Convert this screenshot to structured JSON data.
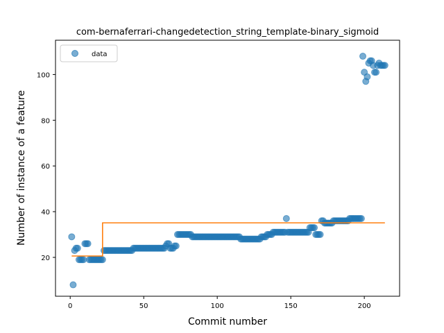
{
  "chart_data": {
    "type": "scatter",
    "title": "com-bernaferrari-changedetection_string_template-binary_sigmoid",
    "xlabel": "Commit number",
    "ylabel": "Number of instance of a feature",
    "xlim": [
      -10,
      224
    ],
    "ylim": [
      3,
      115
    ],
    "xticks": [
      0,
      50,
      100,
      150,
      200
    ],
    "yticks": [
      20,
      40,
      60,
      80,
      100
    ],
    "grid": false,
    "legend_position": "upper-left",
    "series": [
      {
        "name": "data",
        "kind": "points",
        "color": "#1f77b4",
        "points": [
          [
            1,
            29
          ],
          [
            2,
            8
          ],
          [
            3,
            23
          ],
          [
            4,
            24
          ],
          [
            5,
            24
          ],
          [
            6,
            19
          ],
          [
            7,
            19
          ],
          [
            8,
            19
          ],
          [
            9,
            19
          ],
          [
            10,
            26
          ],
          [
            11,
            26
          ],
          [
            12,
            26
          ],
          [
            13,
            19
          ],
          [
            14,
            19
          ],
          [
            15,
            19
          ],
          [
            16,
            19
          ],
          [
            17,
            19
          ],
          [
            18,
            19
          ],
          [
            19,
            19
          ],
          [
            20,
            19
          ],
          [
            21,
            19
          ],
          [
            22,
            19
          ],
          [
            23,
            23
          ],
          [
            24,
            23
          ],
          [
            25,
            23
          ],
          [
            26,
            23
          ],
          [
            27,
            23
          ],
          [
            28,
            23
          ],
          [
            29,
            23
          ],
          [
            30,
            23
          ],
          [
            31,
            23
          ],
          [
            32,
            23
          ],
          [
            33,
            23
          ],
          [
            34,
            23
          ],
          [
            35,
            23
          ],
          [
            36,
            23
          ],
          [
            37,
            23
          ],
          [
            38,
            23
          ],
          [
            39,
            23
          ],
          [
            40,
            23
          ],
          [
            41,
            23
          ],
          [
            42,
            23
          ],
          [
            43,
            24
          ],
          [
            44,
            24
          ],
          [
            45,
            24
          ],
          [
            46,
            24
          ],
          [
            47,
            24
          ],
          [
            48,
            24
          ],
          [
            49,
            24
          ],
          [
            50,
            24
          ],
          [
            51,
            24
          ],
          [
            52,
            24
          ],
          [
            53,
            24
          ],
          [
            54,
            24
          ],
          [
            55,
            24
          ],
          [
            56,
            24
          ],
          [
            57,
            24
          ],
          [
            58,
            24
          ],
          [
            59,
            24
          ],
          [
            60,
            24
          ],
          [
            61,
            24
          ],
          [
            62,
            24
          ],
          [
            63,
            24
          ],
          [
            64,
            24
          ],
          [
            65,
            25
          ],
          [
            66,
            26
          ],
          [
            67,
            26
          ],
          [
            68,
            24
          ],
          [
            69,
            24
          ],
          [
            70,
            24
          ],
          [
            71,
            25
          ],
          [
            72,
            25
          ],
          [
            73,
            30
          ],
          [
            74,
            30
          ],
          [
            75,
            30
          ],
          [
            76,
            30
          ],
          [
            77,
            30
          ],
          [
            78,
            30
          ],
          [
            79,
            30
          ],
          [
            80,
            30
          ],
          [
            81,
            30
          ],
          [
            82,
            30
          ],
          [
            83,
            29
          ],
          [
            84,
            29
          ],
          [
            85,
            29
          ],
          [
            86,
            29
          ],
          [
            87,
            29
          ],
          [
            88,
            29
          ],
          [
            89,
            29
          ],
          [
            90,
            29
          ],
          [
            91,
            29
          ],
          [
            92,
            29
          ],
          [
            93,
            29
          ],
          [
            94,
            29
          ],
          [
            95,
            29
          ],
          [
            96,
            29
          ],
          [
            97,
            29
          ],
          [
            98,
            29
          ],
          [
            99,
            29
          ],
          [
            100,
            29
          ],
          [
            101,
            29
          ],
          [
            102,
            29
          ],
          [
            103,
            29
          ],
          [
            104,
            29
          ],
          [
            105,
            29
          ],
          [
            106,
            29
          ],
          [
            107,
            29
          ],
          [
            108,
            29
          ],
          [
            109,
            29
          ],
          [
            110,
            29
          ],
          [
            111,
            29
          ],
          [
            112,
            29
          ],
          [
            113,
            29
          ],
          [
            114,
            29
          ],
          [
            115,
            29
          ],
          [
            116,
            28
          ],
          [
            117,
            28
          ],
          [
            118,
            28
          ],
          [
            119,
            28
          ],
          [
            120,
            28
          ],
          [
            121,
            28
          ],
          [
            122,
            28
          ],
          [
            123,
            28
          ],
          [
            124,
            28
          ],
          [
            125,
            28
          ],
          [
            126,
            28
          ],
          [
            127,
            28
          ],
          [
            128,
            28
          ],
          [
            129,
            28
          ],
          [
            130,
            29
          ],
          [
            131,
            29
          ],
          [
            132,
            29
          ],
          [
            133,
            29
          ],
          [
            134,
            30
          ],
          [
            135,
            30
          ],
          [
            136,
            30
          ],
          [
            137,
            30
          ],
          [
            138,
            31
          ],
          [
            139,
            31
          ],
          [
            140,
            31
          ],
          [
            141,
            31
          ],
          [
            142,
            31
          ],
          [
            143,
            31
          ],
          [
            144,
            31
          ],
          [
            145,
            31
          ],
          [
            146,
            31
          ],
          [
            147,
            37
          ],
          [
            148,
            31
          ],
          [
            149,
            31
          ],
          [
            150,
            31
          ],
          [
            151,
            31
          ],
          [
            152,
            31
          ],
          [
            153,
            31
          ],
          [
            154,
            31
          ],
          [
            155,
            31
          ],
          [
            156,
            31
          ],
          [
            157,
            31
          ],
          [
            158,
            31
          ],
          [
            159,
            31
          ],
          [
            160,
            31
          ],
          [
            161,
            31
          ],
          [
            162,
            31
          ],
          [
            163,
            33
          ],
          [
            164,
            33
          ],
          [
            165,
            33
          ],
          [
            166,
            33
          ],
          [
            167,
            30
          ],
          [
            168,
            30
          ],
          [
            169,
            30
          ],
          [
            170,
            30
          ],
          [
            171,
            36
          ],
          [
            172,
            36
          ],
          [
            173,
            35
          ],
          [
            174,
            35
          ],
          [
            175,
            35
          ],
          [
            176,
            35
          ],
          [
            177,
            35
          ],
          [
            178,
            35
          ],
          [
            179,
            36
          ],
          [
            180,
            36
          ],
          [
            181,
            36
          ],
          [
            182,
            36
          ],
          [
            183,
            36
          ],
          [
            184,
            36
          ],
          [
            185,
            36
          ],
          [
            186,
            36
          ],
          [
            187,
            36
          ],
          [
            188,
            36
          ],
          [
            189,
            36
          ],
          [
            190,
            37
          ],
          [
            191,
            37
          ],
          [
            192,
            37
          ],
          [
            193,
            37
          ],
          [
            194,
            37
          ],
          [
            195,
            37
          ],
          [
            196,
            37
          ],
          [
            197,
            37
          ],
          [
            198,
            37
          ],
          [
            199,
            108
          ],
          [
            200,
            101
          ],
          [
            201,
            97
          ],
          [
            202,
            99
          ],
          [
            203,
            105
          ],
          [
            204,
            106
          ],
          [
            205,
            106
          ],
          [
            206,
            104
          ],
          [
            207,
            101
          ],
          [
            208,
            101
          ],
          [
            209,
            104
          ],
          [
            210,
            105
          ],
          [
            211,
            104
          ],
          [
            212,
            104
          ],
          [
            213,
            104
          ],
          [
            214,
            104
          ]
        ]
      },
      {
        "name": "",
        "kind": "line",
        "color": "#ff7f0e",
        "points": [
          [
            1,
            20.6
          ],
          [
            22,
            20.6
          ],
          [
            22,
            35.1
          ],
          [
            214,
            35.1
          ]
        ]
      }
    ],
    "legend": [
      {
        "label": "data",
        "marker": "circle",
        "color": "#1f77b4"
      }
    ]
  }
}
